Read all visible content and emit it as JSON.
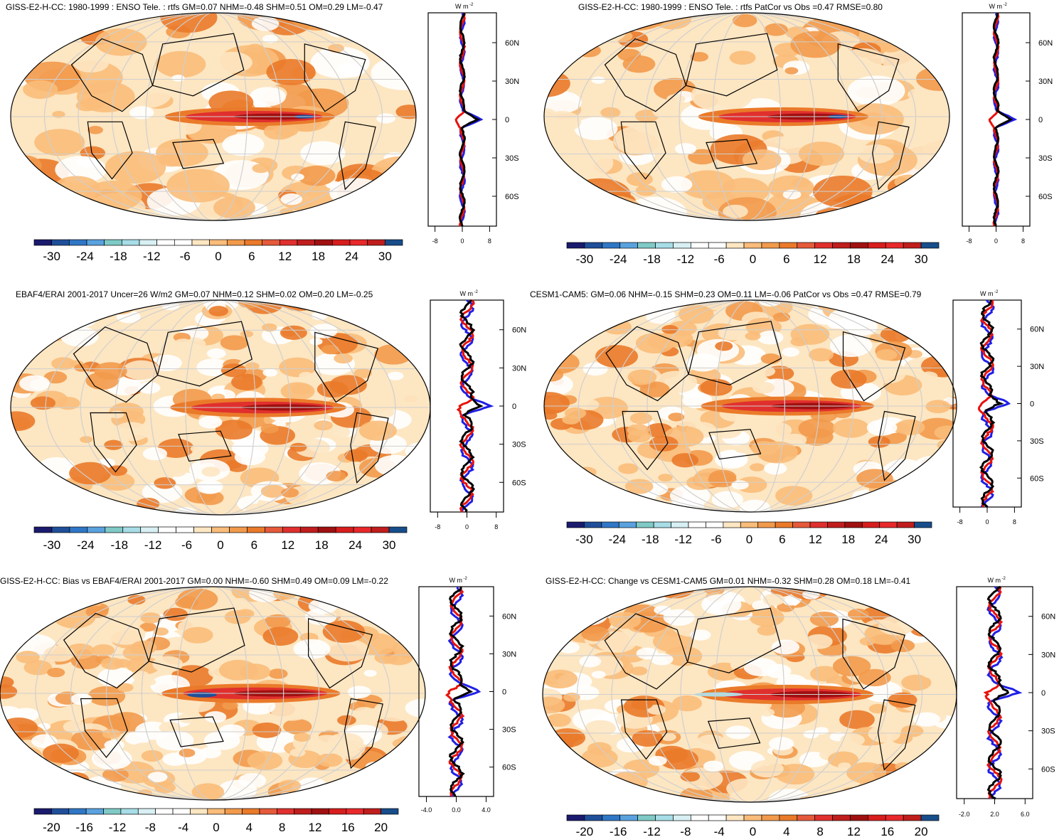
{
  "panels": [
    {
      "title": "GISS-E2-H-CC: 1980-1999 : ENSO Tele. : rtfs GM=0.07 NHM=-0.48 SHM=0.51 OM=0.29 LM=-0.47",
      "colorbar_labels": [
        "-30",
        "-24",
        "-18",
        "-12",
        "-6",
        "0",
        "6",
        "12",
        "18",
        "24",
        "30"
      ],
      "lat_labels": [
        "60N",
        "30N",
        "0",
        "30S",
        "60S"
      ],
      "x_labels": [
        "-8",
        "0",
        "8"
      ]
    },
    {
      "title": "GISS-E2-H-CC: 1980-1999 : ENSO Tele. : rtfs PatCor vs Obs =0.47 RMSE=0.80",
      "colorbar_labels": [
        "-30",
        "-24",
        "-18",
        "-12",
        "-6",
        "0",
        "6",
        "12",
        "18",
        "24",
        "30"
      ],
      "lat_labels": [
        "60N",
        "30N",
        "0",
        "30S",
        "60S"
      ],
      "x_labels": [
        "-8",
        "0",
        "8"
      ]
    },
    {
      "title": "EBAF4/ERAI 2001-2017 Uncer=26 W/m2 GM=0.07 NHM=0.12 SHM=0.02 OM=0.20 LM=-0.25",
      "colorbar_labels": [
        "-30",
        "-24",
        "-18",
        "-12",
        "-6",
        "0",
        "6",
        "12",
        "18",
        "24",
        "30"
      ],
      "lat_labels": [
        "60N",
        "30N",
        "0",
        "30S",
        "60S"
      ],
      "x_labels": [
        "-8",
        "0",
        "8"
      ]
    },
    {
      "title": "CESM1-CAM5: GM=0.06 NHM=-0.15 SHM=0.23 OM=0.11 LM=-0.06 PatCor vs Obs =0.47 RMSE=0.79",
      "colorbar_labels": [
        "-30",
        "-24",
        "-18",
        "-12",
        "-6",
        "0",
        "6",
        "12",
        "18",
        "24",
        "30"
      ],
      "lat_labels": [
        "60N",
        "30N",
        "0",
        "30S",
        "60S"
      ],
      "x_labels": [
        "-8",
        "0",
        "8"
      ]
    },
    {
      "title": "GISS-E2-H-CC: Bias vs EBAF4/ERAI 2001-2017 GM=0.00 NHM=-0.60 SHM=0.49 OM=0.09 LM=-0.22",
      "colorbar_labels": [
        "-20",
        "-16",
        "-12",
        "-8",
        "-4",
        "0",
        "4",
        "8",
        "12",
        "16",
        "20"
      ],
      "lat_labels": [
        "60N",
        "30N",
        "0",
        "30S",
        "60S"
      ],
      "x_labels": [
        "-4.0",
        "0.0",
        "4.0"
      ]
    },
    {
      "title": "GISS-E2-H-CC: Change vs CESM1-CAM5 GM=0.01 NHM=-0.32 SHM=0.28 OM=0.18 LM=-0.41",
      "colorbar_labels": [
        "-20",
        "-16",
        "-12",
        "-8",
        "-4",
        "0",
        "4",
        "8",
        "12",
        "16",
        "20"
      ],
      "lat_labels": [
        "60N",
        "30N",
        "0",
        "30S",
        "60S"
      ],
      "x_labels": [
        "-2.0",
        "2.0",
        "6.0"
      ]
    }
  ],
  "unit_label": "W m",
  "unit_exp": "-2",
  "colors": {
    "palette": [
      "#1a1a6e",
      "#1f4f99",
      "#2f77c6",
      "#5aa2df",
      "#7fcac6",
      "#a7dde6",
      "#d8f0f3",
      "#ffffff",
      "#ffffff",
      "#fde6c2",
      "#f9bc7a",
      "#f29a4c",
      "#ea7a2a",
      "#e55a3a",
      "#e0302e",
      "#c01d1d",
      "#a01010",
      "#d71d1d",
      "#e8282a",
      "#c01d1d",
      "#174d8a"
    ],
    "line_obs": "#000000",
    "line_model": "#e8120c",
    "line_alt": "#1f1fe6"
  }
}
